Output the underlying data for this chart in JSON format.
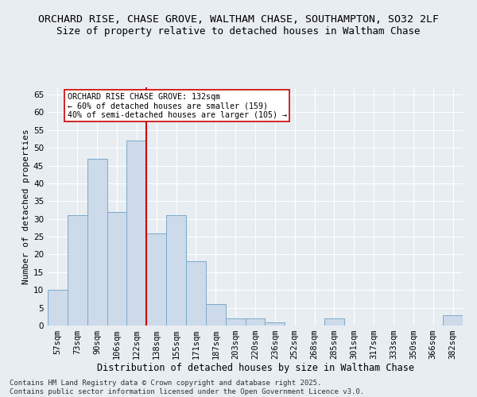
{
  "title_line1": "ORCHARD RISE, CHASE GROVE, WALTHAM CHASE, SOUTHAMPTON, SO32 2LF",
  "title_line2": "Size of property relative to detached houses in Waltham Chase",
  "xlabel": "Distribution of detached houses by size in Waltham Chase",
  "ylabel": "Number of detached properties",
  "categories": [
    "57sqm",
    "73sqm",
    "90sqm",
    "106sqm",
    "122sqm",
    "138sqm",
    "155sqm",
    "171sqm",
    "187sqm",
    "203sqm",
    "220sqm",
    "236sqm",
    "252sqm",
    "268sqm",
    "285sqm",
    "301sqm",
    "317sqm",
    "333sqm",
    "350sqm",
    "366sqm",
    "382sqm"
  ],
  "values": [
    10,
    31,
    47,
    32,
    52,
    26,
    31,
    18,
    6,
    2,
    2,
    1,
    0,
    0,
    2,
    0,
    0,
    0,
    0,
    0,
    3
  ],
  "bar_color": "#cddaea",
  "bar_edge_color": "#7aaac8",
  "vline_color": "#cc0000",
  "annotation_text": "ORCHARD RISE CHASE GROVE: 132sqm\n← 60% of detached houses are smaller (159)\n40% of semi-detached houses are larger (105) →",
  "annotation_box_color": "#ffffff",
  "annotation_box_edge": "#cc0000",
  "ylim": [
    0,
    67
  ],
  "yticks": [
    0,
    5,
    10,
    15,
    20,
    25,
    30,
    35,
    40,
    45,
    50,
    55,
    60,
    65
  ],
  "bg_color": "#e8edf2",
  "plot_bg_color": "#e8edf2",
  "footnote": "Contains HM Land Registry data © Crown copyright and database right 2025.\nContains public sector information licensed under the Open Government Licence v3.0.",
  "title_fontsize": 9.5,
  "subtitle_fontsize": 9,
  "xlabel_fontsize": 8.5,
  "ylabel_fontsize": 8,
  "tick_fontsize": 7.5,
  "footnote_fontsize": 6.5
}
